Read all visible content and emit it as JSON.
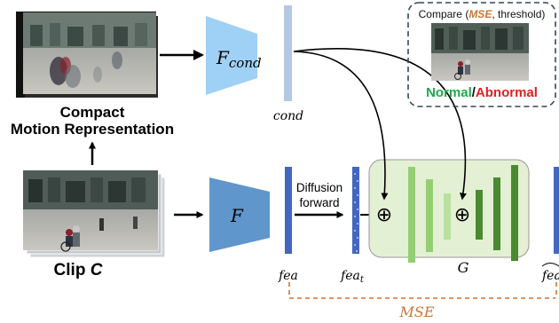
{
  "compact_label_line1": "Compact",
  "compact_label_line2": "Motion Representation",
  "clip_label_prefix": "Clip ",
  "clip_label_var": "C",
  "f_cond_main": "F",
  "f_cond_sub": "cond",
  "f_label": "F",
  "cond_label": "cond",
  "diffusion_line1": "Diffusion",
  "diffusion_line2": "forward",
  "g_label": "G",
  "fea_label": "fea",
  "fea_t_main": "fea",
  "fea_t_sub": "t",
  "fea_hat_label": "fea",
  "mse_bottom": "MSE",
  "compare_prefix": "Compare (",
  "compare_mse": "MSE",
  "compare_suffix": ", threshold)",
  "normal_label": "Normal",
  "slash_label": "/",
  "abnormal_label": "Abnormal",
  "plus_symbol": "⊕",
  "colors": {
    "encoder_light": "#9fd0f5",
    "encoder_dark": "#5f96cc",
    "cond_bar": "#b4c8e4",
    "feature_bar": "#4466c2",
    "unet_bg": "#e3f0d4",
    "unet_light": "#93cf72",
    "unet_dark": "#4a8a30",
    "mse_orange": "#c8773a",
    "normal_green": "#1fa84a",
    "abnormal_red": "#e02020",
    "dashed_box": "#33465a"
  }
}
